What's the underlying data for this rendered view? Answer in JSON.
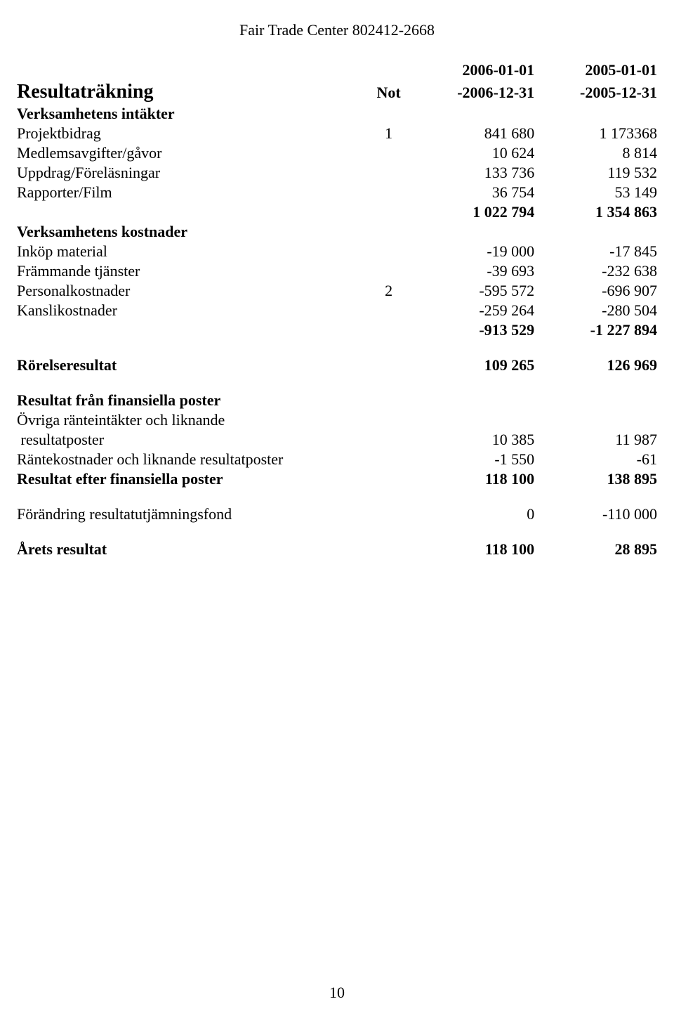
{
  "header": "Fair Trade Center 802412-2668",
  "periods": {
    "start_2006": "2006-01-01",
    "start_2005": "2005-01-01",
    "end_2006": "-2006-12-31",
    "end_2005": "-2005-12-31"
  },
  "title": "Resultaträkning",
  "note_header": "Not",
  "sections": {
    "income": {
      "heading": "Verksamhetens intäkter",
      "rows": [
        {
          "label": "Projektbidrag",
          "note": "1",
          "v1": "841 680",
          "v2": "1 173368"
        },
        {
          "label": "Medlemsavgifter/gåvor",
          "note": "",
          "v1": "10 624",
          "v2": "8 814"
        },
        {
          "label": "Uppdrag/Föreläsningar",
          "note": "",
          "v1": "133 736",
          "v2": "119 532"
        },
        {
          "label": "Rapporter/Film",
          "note": "",
          "v1": "36 754",
          "v2": "53 149"
        }
      ],
      "subtotal": {
        "v1": "1 022 794",
        "v2": "1 354 863"
      }
    },
    "costs": {
      "heading": "Verksamhetens kostnader",
      "rows": [
        {
          "label": "Inköp material",
          "note": "",
          "v1": "-19 000",
          "v2": "-17 845"
        },
        {
          "label": "Främmande tjänster",
          "note": "",
          "v1": "-39 693",
          "v2": "-232 638"
        },
        {
          "label": "Personalkostnader",
          "note": "2",
          "v1": "-595 572",
          "v2": "-696 907"
        },
        {
          "label": "Kanslikostnader",
          "note": "",
          "v1": "-259 264",
          "v2": "-280 504"
        }
      ],
      "subtotal": {
        "v1": "-913 529",
        "v2": "-1 227 894"
      }
    },
    "operating_result": {
      "label": "Rörelseresultat",
      "v1": "109 265",
      "v2": "126 969"
    },
    "financial": {
      "heading": "Resultat från finansiella poster",
      "rows": [
        {
          "label1": "Övriga ränteintäkter och liknande",
          "label2": " resultatposter",
          "v1": "10 385",
          "v2": "11 987"
        },
        {
          "label": "Räntekostnader och liknande resultatposter",
          "v1": "-1 550",
          "v2": "-61"
        }
      ],
      "after": {
        "label": "Resultat efter finansiella poster",
        "v1": "118 100",
        "v2": "138 895"
      }
    },
    "adjustment": {
      "label": "Förändring resultatutjämningsfond",
      "v1": "0",
      "v2": "-110 000"
    },
    "year_result": {
      "label": "Årets resultat",
      "v1": "118 100",
      "v2": "28 895"
    }
  },
  "page_number": "10"
}
